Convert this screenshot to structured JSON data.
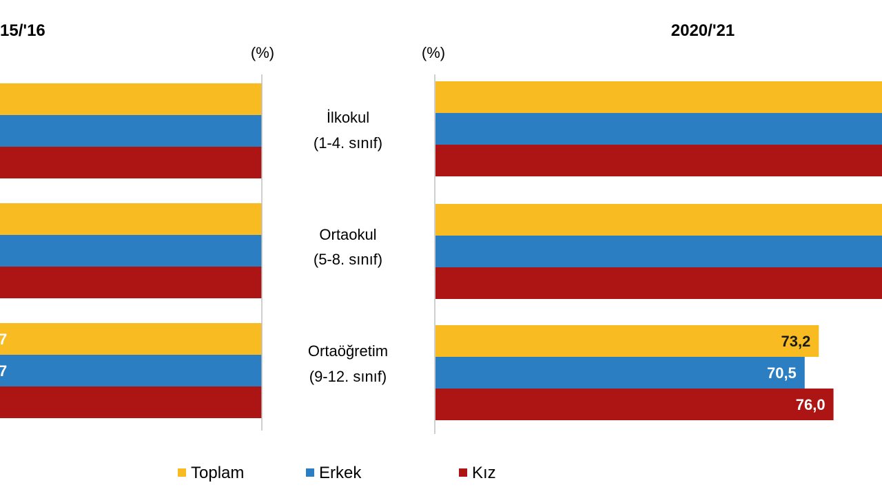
{
  "chart_data": {
    "type": "bar",
    "orientation": "horizontal",
    "unit_label": "(%)",
    "categories": [
      {
        "line1": "İlkokul",
        "line2": "(1-4. sınıf)"
      },
      {
        "line1": "Ortaokul",
        "line2": "(5-8. sınıf)"
      },
      {
        "line1": "Ortaöğretim",
        "line2": "(9-12. sınıf)"
      }
    ],
    "panels": [
      {
        "title": "15/'16",
        "direction": "right-to-left",
        "series": [
          {
            "name": "Toplam",
            "values": [
              null,
              null,
              null
            ]
          },
          {
            "name": "Erkek",
            "values": [
              null,
              null,
              null
            ]
          },
          {
            "name": "Kız",
            "values": [
              null,
              null,
              null
            ]
          }
        ],
        "visible_labels": [
          [
            "",
            "",
            ""
          ],
          [
            "",
            "",
            ""
          ],
          [
            "7",
            "7",
            ""
          ]
        ]
      },
      {
        "title": "2020/'21",
        "direction": "left-to-right",
        "series": [
          {
            "name": "Toplam",
            "values": [
              null,
              null,
              73.2
            ]
          },
          {
            "name": "Erkek",
            "values": [
              null,
              null,
              70.5
            ]
          },
          {
            "name": "Kız",
            "values": [
              null,
              null,
              76.0
            ]
          }
        ],
        "value_labels": [
          [
            "",
            "",
            ""
          ],
          [
            "",
            "",
            ""
          ],
          [
            "73,2",
            "70,5",
            "76,0"
          ]
        ]
      }
    ],
    "legend": {
      "placement": "bottom",
      "entries": [
        "Toplam",
        "Erkek",
        "Kız"
      ]
    },
    "colors": {
      "Toplam": "#f8bc22",
      "Erkek": "#2b7ec2",
      "Kız": "#ad1515",
      "axis": "#bfbfbf"
    }
  }
}
